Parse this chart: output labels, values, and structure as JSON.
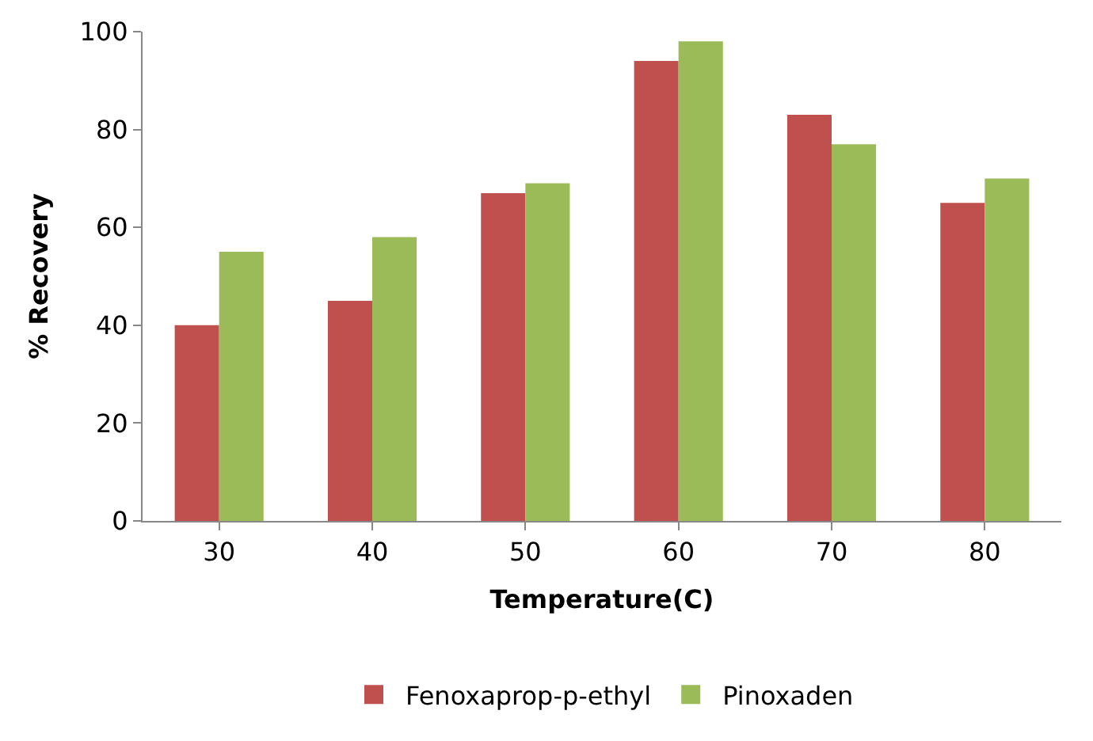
{
  "chart_data": {
    "type": "bar",
    "xlabel": "Temperature(C)",
    "ylabel": "% Recovery",
    "categories": [
      "30",
      "40",
      "50",
      "60",
      "70",
      "80"
    ],
    "series": [
      {
        "name": "Fenoxaprop-p-ethyl",
        "color": "#c0504d",
        "values": [
          40,
          45,
          67,
          94,
          83,
          65
        ]
      },
      {
        "name": "Pinoxaden",
        "color": "#9bbb59",
        "values": [
          55,
          58,
          69,
          98,
          77,
          70
        ]
      }
    ],
    "ylim": [
      0,
      100
    ],
    "yticks": [
      0,
      20,
      40,
      60,
      80,
      100
    ],
    "legend": "bottom"
  }
}
